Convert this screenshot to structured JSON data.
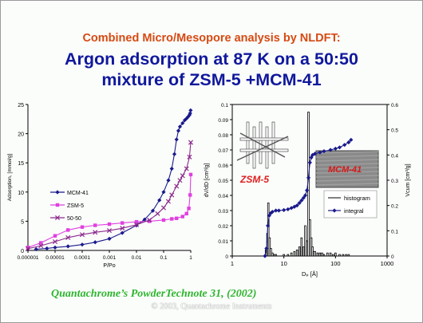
{
  "slide": {
    "title_line1": "Combined Micro/Mesopore analysis by NLDFT:",
    "title_line2": "Argon adsorption at 87 K on a 50:50",
    "title_line3": "mixture of ZSM-5 +MCM-41",
    "reference": "Quantachrome’s PowderTechnote 31, (2002)",
    "copyright": "© 2003, Quantachrome Instruments"
  },
  "colors": {
    "mcm41": "#1a1a8c",
    "zsm5": "#e040e0",
    "mix": "#8c2a8c",
    "integral": "#1a1a8c",
    "title_orange": "#d64a12",
    "title_blue": "#10189c",
    "reference_green": "#2fb52f"
  },
  "chart_data": [
    {
      "type": "line",
      "xscale": "log",
      "xlabel": "P/Po",
      "ylabel": "Adsorption, [mmol/g]",
      "xlim": [
        1e-06,
        1
      ],
      "ylim": [
        0,
        25
      ],
      "x_ticks": [
        "0.000001",
        "0.00001",
        "0.0001",
        "0.001",
        "0.01",
        "0.1",
        "1"
      ],
      "y_ticks": [
        "0",
        "5",
        "10",
        "15",
        "20",
        "25"
      ],
      "legend_position": "left-middle",
      "series": [
        {
          "name": "MCM-41",
          "marker": "diamond",
          "color": "#1a1a8c",
          "x": [
            2e-06,
            5e-06,
            1e-05,
            3e-05,
            0.0001,
            0.0003,
            0.001,
            0.003,
            0.01,
            0.02,
            0.04,
            0.07,
            0.1,
            0.15,
            0.2,
            0.25,
            0.3,
            0.35,
            0.4,
            0.5,
            0.6,
            0.7,
            0.8,
            0.9,
            0.95,
            0.99
          ],
          "y": [
            0.2,
            0.35,
            0.5,
            0.7,
            1.0,
            1.4,
            2.0,
            3.0,
            4.3,
            5.3,
            6.8,
            8.6,
            10.0,
            12.0,
            14.0,
            16.5,
            19.0,
            20.5,
            21.2,
            21.8,
            22.3,
            22.6,
            22.9,
            23.2,
            23.5,
            24.0
          ]
        },
        {
          "name": "ZSM-5",
          "marker": "square",
          "color": "#e040e0",
          "x": [
            1e-06,
            3e-06,
            1e-05,
            3e-05,
            0.0001,
            0.0003,
            0.001,
            0.003,
            0.01,
            0.03,
            0.1,
            0.2,
            0.3,
            0.5,
            0.7,
            0.85,
            0.95,
            1.0
          ],
          "y": [
            0.5,
            1.3,
            2.5,
            3.5,
            4.0,
            4.3,
            4.5,
            4.7,
            4.9,
            5.0,
            5.2,
            5.4,
            5.5,
            5.8,
            6.3,
            7.2,
            9.5,
            13.0
          ]
        },
        {
          "name": "50-50",
          "marker": "x",
          "color": "#8c2a8c",
          "x": [
            1e-06,
            3e-06,
            1e-05,
            3e-05,
            0.0001,
            0.0003,
            0.001,
            0.003,
            0.01,
            0.03,
            0.06,
            0.1,
            0.15,
            0.2,
            0.3,
            0.4,
            0.5,
            0.7,
            0.9,
            1.0
          ],
          "y": [
            0.3,
            0.8,
            1.5,
            2.2,
            2.7,
            3.1,
            3.4,
            3.8,
            4.4,
            5.2,
            6.3,
            7.3,
            8.4,
            9.5,
            11.0,
            12.0,
            12.8,
            14.0,
            16.0,
            18.5
          ]
        }
      ]
    },
    {
      "type": "bar",
      "xscale": "log",
      "xlabel": "Dₚ [Å]",
      "ylabel": "dV/dD [cm³/g]",
      "y2label": "Vcum [cm³/g]",
      "xlim": [
        1,
        1000
      ],
      "ylim": [
        0,
        0.1
      ],
      "y2lim": [
        0,
        0.6
      ],
      "x_ticks": [
        "1",
        "10",
        "100",
        "1000"
      ],
      "y_ticks": [
        "0",
        "0.01",
        "0.02",
        "0.03",
        "0.04",
        "0.05",
        "0.06",
        "0.07",
        "0.08",
        "0.09",
        "0.1"
      ],
      "y2_ticks": [
        "0",
        "0.1",
        "0.2",
        "0.3",
        "0.4",
        "0.5",
        "0.6"
      ],
      "legend_position": "right-middle",
      "inset_labels": {
        "zsm5": "ZSM-5",
        "mcm41": "MCM-41"
      },
      "series": [
        {
          "name": "histogram",
          "kind": "bar",
          "color": "#000000",
          "x": [
            4.5,
            4.8,
            5.0,
            5.3,
            5.6,
            6.0,
            6.5,
            7.0,
            8.0,
            9.0,
            10,
            12,
            14,
            16,
            18,
            20,
            22,
            24,
            26,
            28,
            30,
            32,
            34,
            36,
            38,
            40,
            45,
            50,
            55,
            60,
            70,
            80,
            90,
            100,
            120,
            140,
            160,
            180,
            200
          ],
          "y": [
            0.004,
            0.015,
            0.035,
            0.012,
            0.005,
            0.002,
            0.001,
            0.001,
            0.0,
            0.0,
            0.001,
            0.001,
            0.002,
            0.003,
            0.004,
            0.006,
            0.012,
            0.006,
            0.02,
            0.01,
            0.095,
            0.024,
            0.012,
            0.006,
            0.003,
            0.003,
            0.002,
            0.002,
            0.002,
            0.001,
            0.002,
            0.002,
            0.001,
            0.002,
            0.001,
            0.001,
            0.001,
            0.001,
            0.0
          ]
        },
        {
          "name": "integral",
          "kind": "line",
          "axis": "right",
          "color": "#1a1a8c",
          "marker": "diamond",
          "x": [
            4.3,
            4.6,
            4.9,
            5.2,
            5.6,
            6.0,
            7,
            8,
            10,
            12,
            14,
            16,
            18,
            20,
            22,
            24,
            26,
            28,
            30,
            32,
            34,
            36,
            40,
            50,
            60,
            80,
            100,
            120,
            150,
            180,
            200
          ],
          "y": [
            0.0,
            0.03,
            0.12,
            0.16,
            0.17,
            0.175,
            0.18,
            0.18,
            0.182,
            0.185,
            0.19,
            0.195,
            0.2,
            0.21,
            0.22,
            0.23,
            0.24,
            0.26,
            0.31,
            0.37,
            0.39,
            0.4,
            0.405,
            0.41,
            0.415,
            0.42,
            0.425,
            0.43,
            0.44,
            0.45,
            0.46
          ]
        }
      ]
    }
  ]
}
